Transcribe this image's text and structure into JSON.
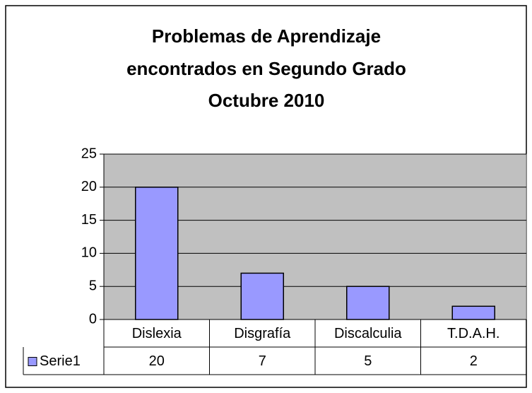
{
  "chart_data": {
    "type": "bar",
    "title": [
      "Problemas de Aprendizaje",
      "encontrados en Segundo Grado",
      "Octubre 2010"
    ],
    "categories": [
      "Dislexia",
      "Disgrafía",
      "Discalculia",
      "T.D.A.H."
    ],
    "series": [
      {
        "name": "Serie1",
        "color": "#9999ff",
        "values": [
          20,
          7,
          5,
          2
        ]
      }
    ],
    "ylim": [
      0,
      25
    ],
    "yticks": [
      0,
      5,
      10,
      15,
      20,
      25
    ],
    "grid": true,
    "plot_background": "#c0c0c0",
    "data_table": true
  }
}
